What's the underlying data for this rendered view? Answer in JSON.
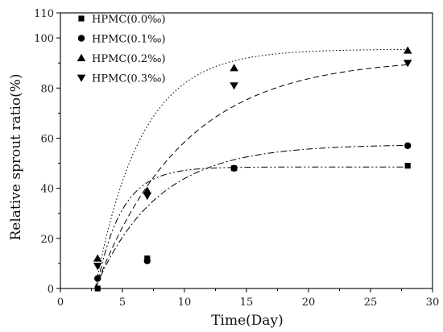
{
  "chart_data": {
    "type": "scatter",
    "xlabel": "Time(Day)",
    "ylabel": "Relative sprout ratio(%)",
    "xlim": [
      0,
      30
    ],
    "ylim": [
      0,
      110
    ],
    "xticks": [
      0,
      5,
      10,
      15,
      20,
      25,
      30
    ],
    "yticks": [
      0,
      20,
      40,
      60,
      80,
      100,
      110
    ],
    "grid": false,
    "legend_position": "top-left",
    "series": [
      {
        "name": "HPMC(0.0‰)",
        "marker": "square",
        "line_style": "dash-dot-dot",
        "x": [
          3,
          7,
          14,
          28
        ],
        "y": [
          0,
          12,
          48,
          49
        ],
        "fit": {
          "asymptote": 48.5,
          "rate": 0.5,
          "x0": 2.9
        }
      },
      {
        "name": "HPMC(0.1‰)",
        "marker": "circle",
        "line_style": "dash-dot",
        "x": [
          3,
          7,
          14,
          28
        ],
        "y": [
          4,
          11,
          48,
          57
        ],
        "fit": {
          "asymptote": 57.5,
          "rate": 0.2,
          "x0": 2.8
        }
      },
      {
        "name": "HPMC(0.2‰)",
        "marker": "triangle-up",
        "line_style": "dotted",
        "x": [
          3,
          7,
          14,
          28
        ],
        "y": [
          12,
          39,
          88,
          95
        ],
        "fit": {
          "asymptote": 95.5,
          "rate": 0.27,
          "x0": 2.8
        }
      },
      {
        "name": "HPMC(0.3‰)",
        "marker": "triangle-down",
        "line_style": "dashed",
        "x": [
          3,
          7,
          14,
          28
        ],
        "y": [
          9,
          37,
          81,
          90
        ],
        "fit": {
          "asymptote": 92.0,
          "rate": 0.14,
          "x0": 2.8
        }
      }
    ]
  }
}
